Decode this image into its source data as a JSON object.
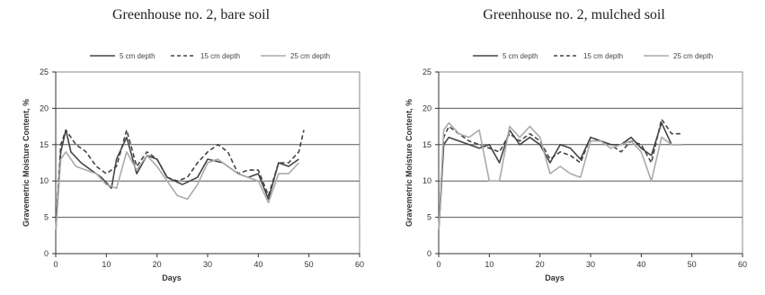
{
  "chart_data": [
    {
      "type": "line",
      "title": "Greenhouse no. 2, bare soil",
      "xlabel": "Days",
      "ylabel": "Gravemetric Moisture Content, %",
      "xlim": [
        0,
        60
      ],
      "ylim": [
        0,
        25
      ],
      "xticks": [
        0,
        10,
        20,
        30,
        40,
        50,
        60
      ],
      "yticks": [
        0,
        5,
        10,
        15,
        20,
        25
      ],
      "grid": "horizontal",
      "legend": "top",
      "series": [
        {
          "name": "5 cm depth",
          "style": "solid",
          "color": "#444444",
          "x": [
            0,
            1,
            2,
            3,
            5,
            7,
            9,
            11,
            12,
            14,
            16,
            18,
            20,
            22,
            25,
            28,
            30,
            33,
            36,
            38,
            40,
            42,
            44,
            46,
            48
          ],
          "y": [
            3,
            14,
            17,
            14,
            12.5,
            11.5,
            10.5,
            9,
            13,
            16,
            11,
            13.5,
            13,
            10.5,
            9.5,
            10.5,
            13,
            12.5,
            11,
            10.5,
            11,
            7.5,
            12.5,
            12,
            13
          ]
        },
        {
          "name": "15 cm depth",
          "style": "dashed",
          "color": "#444444",
          "x": [
            0,
            1,
            2,
            4,
            6,
            8,
            10,
            12,
            14,
            16,
            18,
            20,
            22,
            24,
            26,
            28,
            30,
            32,
            34,
            36,
            38,
            40,
            42,
            44,
            46,
            48,
            49
          ],
          "y": [
            3,
            15,
            17,
            15,
            14,
            12,
            11,
            12,
            17,
            12,
            14,
            13,
            10.5,
            10,
            10.5,
            12.5,
            14,
            15,
            14,
            11,
            11.5,
            11.5,
            8,
            12.5,
            12.5,
            14,
            17
          ]
        },
        {
          "name": "25 cm depth",
          "style": "solid",
          "color": "#aaaaaa",
          "x": [
            0,
            1,
            2,
            4,
            6,
            8,
            10,
            12,
            14,
            16,
            18,
            20,
            22,
            24,
            26,
            28,
            30,
            32,
            34,
            36,
            38,
            40,
            42,
            44,
            46,
            48
          ],
          "y": [
            3,
            13,
            14,
            12,
            11.5,
            11,
            9.5,
            9,
            14,
            11.5,
            13.5,
            12,
            10,
            8,
            7.5,
            9.5,
            12.5,
            13,
            12,
            11,
            10.5,
            10,
            7,
            11,
            11,
            12.5
          ]
        }
      ]
    },
    {
      "type": "line",
      "title": "Greenhouse no. 2, mulched soil",
      "xlabel": "Days",
      "ylabel": "Gravemetric Moisture Content, %",
      "xlim": [
        0,
        60
      ],
      "ylim": [
        0,
        25
      ],
      "xticks": [
        0,
        10,
        20,
        30,
        40,
        50,
        60
      ],
      "yticks": [
        0,
        5,
        10,
        15,
        20,
        25
      ],
      "grid": "horizontal",
      "legend": "top",
      "series": [
        {
          "name": "5 cm depth",
          "style": "solid",
          "color": "#444444",
          "x": [
            0,
            1,
            2,
            4,
            6,
            8,
            10,
            12,
            14,
            16,
            18,
            20,
            22,
            24,
            26,
            28,
            30,
            32,
            34,
            36,
            38,
            40,
            42,
            44,
            46,
            48
          ],
          "y": [
            3,
            15,
            16,
            15.5,
            15,
            14.5,
            15,
            12.5,
            17,
            15,
            16,
            15,
            12.5,
            15,
            14.5,
            13,
            16,
            15.5,
            15,
            15,
            16,
            14.5,
            13.5,
            18,
            15,
            15
          ]
        },
        {
          "name": "15 cm depth",
          "style": "dashed",
          "color": "#444444",
          "x": [
            0,
            1,
            2,
            4,
            6,
            8,
            10,
            12,
            14,
            16,
            18,
            20,
            22,
            24,
            26,
            28,
            30,
            32,
            34,
            36,
            38,
            40,
            42,
            44,
            46,
            48
          ],
          "y": [
            3,
            16,
            17.5,
            16.5,
            15.5,
            15,
            14.5,
            14,
            16.5,
            15.5,
            16.5,
            15.5,
            13,
            14,
            13.5,
            12.5,
            16,
            15.5,
            15,
            14,
            15.5,
            15,
            12.5,
            18.5,
            16.5,
            16.5
          ]
        },
        {
          "name": "25 cm depth",
          "style": "solid",
          "color": "#aaaaaa",
          "x": [
            0,
            1,
            2,
            4,
            6,
            8,
            10,
            12,
            14,
            16,
            18,
            20,
            22,
            24,
            26,
            28,
            30,
            32,
            34,
            36,
            38,
            40,
            42,
            44,
            46,
            48
          ],
          "y": [
            3,
            17,
            18,
            16.5,
            16,
            17,
            10,
            10,
            17.5,
            16,
            17.5,
            16,
            11,
            12,
            11,
            10.5,
            15.5,
            15.5,
            14.5,
            15,
            15.5,
            14,
            10,
            16,
            15,
            15
          ]
        }
      ]
    }
  ]
}
